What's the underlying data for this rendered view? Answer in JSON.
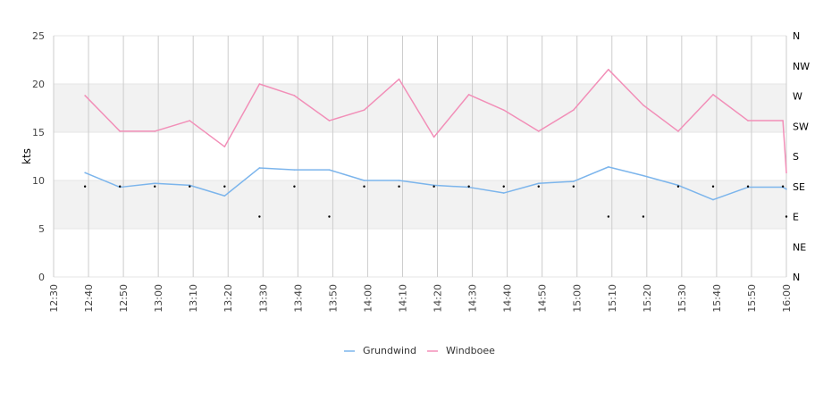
{
  "chart_data": {
    "type": "line",
    "ylabel": "kts",
    "ylim": [
      0,
      25
    ],
    "y_ticks": [
      "0",
      "5",
      "10",
      "15",
      "20",
      "25"
    ],
    "x_ticks": [
      "12:30",
      "12:40",
      "12:50",
      "13:00",
      "13:10",
      "13:20",
      "13:30",
      "13:40",
      "13:50",
      "14:00",
      "14:10",
      "14:20",
      "14:30",
      "14:40",
      "14:50",
      "15:00",
      "15:10",
      "15:20",
      "15:30",
      "15:40",
      "15:50",
      "16:00"
    ],
    "x": [
      "12:39",
      "12:49",
      "12:59",
      "13:09",
      "13:19",
      "13:29",
      "13:39",
      "13:49",
      "13:59",
      "14:09",
      "14:19",
      "14:29",
      "14:39",
      "14:49",
      "14:59",
      "15:09",
      "15:19",
      "15:29",
      "15:39",
      "15:49",
      "15:59",
      "16:00"
    ],
    "direction_axis": [
      "N",
      "NE",
      "E",
      "SE",
      "S",
      "SW",
      "W",
      "NW",
      "N"
    ],
    "series": [
      {
        "name": "Grundwind",
        "color": "#7cb5ec",
        "values": [
          10.8,
          9.3,
          9.7,
          9.5,
          8.4,
          11.3,
          11.1,
          11.1,
          10.0,
          10.0,
          9.5,
          9.3,
          8.7,
          9.7,
          9.9,
          11.4,
          10.5,
          9.5,
          8.0,
          9.3,
          9.3,
          9.1
        ]
      },
      {
        "name": "Windboee",
        "color": "#f28fb8",
        "values": [
          18.8,
          15.1,
          15.1,
          16.2,
          13.5,
          20.0,
          18.8,
          16.2,
          17.3,
          20.5,
          14.5,
          18.9,
          17.3,
          15.1,
          17.3,
          21.5,
          17.8,
          15.1,
          18.9,
          16.2,
          16.2,
          10.8
        ]
      }
    ],
    "direction_points": {
      "x": [
        "12:39",
        "12:49",
        "12:59",
        "13:09",
        "13:19",
        "13:29",
        "13:39",
        "13:49",
        "13:59",
        "14:09",
        "14:19",
        "14:29",
        "14:39",
        "14:49",
        "14:59",
        "15:09",
        "15:19",
        "15:29",
        "15:39",
        "15:49",
        "15:59",
        "16:00"
      ],
      "values": [
        "SE",
        "SE",
        "SE",
        "SE",
        "SE",
        "E",
        "SE",
        "E",
        "SE",
        "SE",
        "SE",
        "SE",
        "SE",
        "SE",
        "SE",
        "E",
        "E",
        "SE",
        "SE",
        "SE",
        "SE",
        "E"
      ]
    },
    "bands": [
      [
        5,
        10
      ],
      [
        15,
        20
      ]
    ],
    "band_color": "#f2f2f2",
    "grid": true,
    "legend_position": "bottom-center"
  }
}
